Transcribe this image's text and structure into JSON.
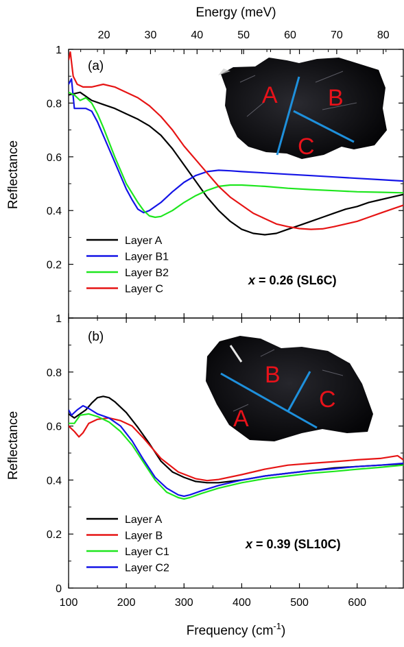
{
  "chart_data": [
    {
      "type": "line",
      "panel_label": "(a)",
      "annotation_var": "x",
      "annotation_value": " = 0.26 (SL6C)",
      "xlabel": "Frequency (cm−1)",
      "xlabel_main": "Frequency (cm",
      "xlabel_sup": "-1",
      "xlabel_close": ")",
      "top_xlabel": "Energy (meV)",
      "ylabel": "Reflectance",
      "xlim": [
        100,
        680
      ],
      "ylim": [
        0,
        1
      ],
      "xticks": [
        100,
        200,
        300,
        400,
        500,
        600
      ],
      "yticks": [
        0,
        0.2,
        0.4,
        0.6,
        0.8,
        1
      ],
      "ytick_labels": [
        "",
        "0.2",
        "0.4",
        "0.6",
        "0.8",
        "1"
      ],
      "top_xticks_meV": [
        20,
        30,
        40,
        50,
        60,
        70,
        80
      ],
      "legend_position": "bottom-left",
      "photo_labels": [
        "A",
        "B",
        "C"
      ],
      "series": [
        {
          "name": "Layer A",
          "color": "#000000",
          "x": [
            100,
            120,
            140,
            160,
            180,
            200,
            220,
            240,
            260,
            280,
            300,
            320,
            340,
            360,
            380,
            400,
            420,
            440,
            460,
            480,
            500,
            520,
            540,
            560,
            580,
            600,
            620,
            640,
            660,
            680
          ],
          "y": [
            0.83,
            0.84,
            0.81,
            0.795,
            0.78,
            0.76,
            0.74,
            0.715,
            0.68,
            0.63,
            0.57,
            0.51,
            0.45,
            0.4,
            0.36,
            0.33,
            0.315,
            0.31,
            0.315,
            0.33,
            0.345,
            0.36,
            0.375,
            0.39,
            0.405,
            0.415,
            0.43,
            0.44,
            0.45,
            0.46
          ]
        },
        {
          "name": "Layer B1",
          "color": "#1414e6",
          "x": [
            100,
            105,
            110,
            120,
            130,
            140,
            150,
            160,
            180,
            200,
            210,
            220,
            230,
            240,
            260,
            280,
            300,
            320,
            340,
            360,
            380,
            400,
            440,
            480,
            520,
            560,
            600,
            640,
            680
          ],
          "y": [
            0.87,
            0.89,
            0.78,
            0.78,
            0.78,
            0.77,
            0.73,
            0.68,
            0.58,
            0.48,
            0.44,
            0.405,
            0.392,
            0.4,
            0.43,
            0.47,
            0.505,
            0.53,
            0.545,
            0.55,
            0.548,
            0.545,
            0.54,
            0.535,
            0.53,
            0.525,
            0.52,
            0.515,
            0.51
          ]
        },
        {
          "name": "Layer B2",
          "color": "#1ee61e",
          "x": [
            100,
            110,
            120,
            130,
            140,
            150,
            160,
            180,
            200,
            220,
            230,
            240,
            250,
            260,
            280,
            300,
            320,
            340,
            360,
            380,
            400,
            440,
            480,
            520,
            560,
            600,
            640,
            680
          ],
          "y": [
            0.84,
            0.83,
            0.81,
            0.82,
            0.8,
            0.76,
            0.71,
            0.6,
            0.5,
            0.43,
            0.4,
            0.38,
            0.375,
            0.378,
            0.4,
            0.43,
            0.455,
            0.475,
            0.49,
            0.495,
            0.495,
            0.49,
            0.483,
            0.478,
            0.474,
            0.47,
            0.468,
            0.466
          ]
        },
        {
          "name": "Layer C",
          "color": "#e61414",
          "x": [
            100,
            103,
            108,
            115,
            125,
            140,
            160,
            180,
            200,
            220,
            240,
            260,
            280,
            300,
            320,
            340,
            360,
            380,
            400,
            420,
            440,
            460,
            480,
            500,
            520,
            540,
            560,
            580,
            600,
            620,
            640,
            660,
            680
          ],
          "y": [
            0.96,
            0.99,
            0.9,
            0.87,
            0.86,
            0.86,
            0.87,
            0.86,
            0.84,
            0.82,
            0.79,
            0.75,
            0.7,
            0.64,
            0.59,
            0.54,
            0.49,
            0.45,
            0.42,
            0.39,
            0.37,
            0.35,
            0.34,
            0.333,
            0.33,
            0.332,
            0.34,
            0.35,
            0.36,
            0.375,
            0.39,
            0.405,
            0.42
          ]
        }
      ]
    },
    {
      "type": "line",
      "panel_label": "(b)",
      "annotation_var": "x",
      "annotation_value": " = 0.39 (SL10C)",
      "xlabel": "Frequency (cm−1)",
      "ylabel": "Reflectance",
      "xlim": [
        100,
        680
      ],
      "ylim": [
        0,
        1
      ],
      "xticks": [
        100,
        200,
        300,
        400,
        500,
        600
      ],
      "xtick_labels": [
        "100",
        "200",
        "300",
        "400",
        "500",
        "600"
      ],
      "yticks": [
        0,
        0.2,
        0.4,
        0.6,
        0.8,
        1
      ],
      "ytick_labels": [
        "0",
        "0.2",
        "0.4",
        "0.6",
        "0.8",
        "1"
      ],
      "legend_position": "bottom-left",
      "photo_labels": [
        "A",
        "B",
        "C"
      ],
      "series": [
        {
          "name": "Layer A",
          "color": "#000000",
          "x": [
            100,
            110,
            120,
            130,
            140,
            150,
            160,
            170,
            180,
            200,
            220,
            240,
            260,
            280,
            300,
            320,
            340,
            360,
            400,
            440,
            480,
            520,
            560,
            600,
            640,
            680
          ],
          "y": [
            0.645,
            0.63,
            0.645,
            0.66,
            0.685,
            0.705,
            0.71,
            0.705,
            0.69,
            0.65,
            0.595,
            0.535,
            0.47,
            0.43,
            0.41,
            0.395,
            0.39,
            0.39,
            0.4,
            0.415,
            0.425,
            0.435,
            0.445,
            0.45,
            0.455,
            0.46
          ]
        },
        {
          "name": "Layer B",
          "color": "#e61414",
          "x": [
            100,
            110,
            118,
            125,
            135,
            150,
            170,
            190,
            210,
            230,
            260,
            290,
            320,
            340,
            360,
            400,
            440,
            480,
            520,
            560,
            600,
            640,
            670,
            680
          ],
          "y": [
            0.6,
            0.58,
            0.56,
            0.575,
            0.61,
            0.625,
            0.63,
            0.62,
            0.6,
            0.555,
            0.48,
            0.43,
            0.405,
            0.398,
            0.402,
            0.42,
            0.44,
            0.455,
            0.462,
            0.468,
            0.475,
            0.48,
            0.49,
            0.475
          ]
        },
        {
          "name": "Layer C1",
          "color": "#1ee61e",
          "x": [
            100,
            110,
            120,
            135,
            150,
            170,
            190,
            210,
            230,
            250,
            270,
            290,
            300,
            310,
            330,
            360,
            400,
            440,
            480,
            520,
            560,
            600,
            640,
            680
          ],
          "y": [
            0.61,
            0.61,
            0.64,
            0.645,
            0.635,
            0.615,
            0.58,
            0.53,
            0.465,
            0.4,
            0.355,
            0.335,
            0.33,
            0.335,
            0.35,
            0.37,
            0.39,
            0.405,
            0.415,
            0.425,
            0.432,
            0.44,
            0.447,
            0.455
          ]
        },
        {
          "name": "Layer C2",
          "color": "#1414e6",
          "x": [
            100,
            105,
            115,
            125,
            135,
            150,
            170,
            190,
            210,
            230,
            250,
            270,
            290,
            300,
            310,
            330,
            360,
            400,
            440,
            480,
            520,
            560,
            600,
            640,
            680
          ],
          "y": [
            0.66,
            0.64,
            0.66,
            0.675,
            0.665,
            0.645,
            0.63,
            0.6,
            0.545,
            0.475,
            0.41,
            0.37,
            0.345,
            0.34,
            0.345,
            0.36,
            0.38,
            0.4,
            0.415,
            0.425,
            0.435,
            0.442,
            0.45,
            0.455,
            0.462
          ]
        }
      ]
    }
  ]
}
